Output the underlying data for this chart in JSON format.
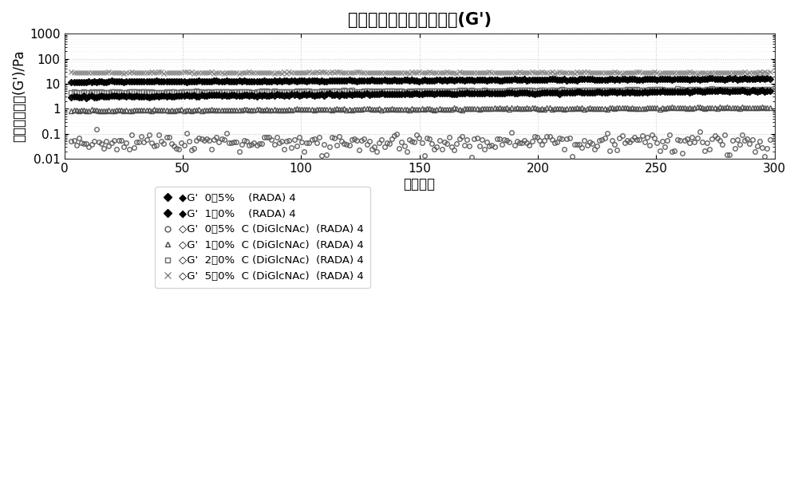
{
  "title": "水性溶液的贮存弹性模量(G')",
  "xlabel": "时间，秒",
  "ylabel": "贮存弹性模量(G')/Pa",
  "xlim": [
    0,
    300
  ],
  "ylim_log": [
    0.01,
    1000
  ],
  "xticks": [
    0,
    50,
    100,
    150,
    200,
    250,
    300
  ],
  "yticks": [
    0.01,
    0.1,
    1,
    10,
    100,
    1000
  ],
  "ytick_labels": [
    "0.01",
    "0.1",
    "1",
    "10",
    "100",
    "1000"
  ],
  "background_color": "#ffffff",
  "plot_bg_color": "#ffffff",
  "n_points": 280,
  "series": [
    {
      "label": "◆G'  0．5%    (RADA) 4",
      "y_center": 3.0,
      "noise": 0.04,
      "marker": "D",
      "color": "#000000",
      "markersize": 4,
      "fillstyle": "full",
      "trend": 0.002
    },
    {
      "label": "◆G'  1．0%    (RADA) 4",
      "y_center": 12.0,
      "noise": 0.03,
      "marker": "D",
      "color": "#000000",
      "markersize": 4,
      "fillstyle": "full",
      "trend": 0.001
    },
    {
      "label": "◇G'  0．5%  C (DiGlcNAc)  (RADA) 4",
      "y_center": 0.05,
      "noise": 0.35,
      "marker": "o",
      "color": "#555555",
      "markersize": 4,
      "fillstyle": "none",
      "trend": -0.001
    },
    {
      "label": "◇G'  1．0%  C (DiGlcNAc)  (RADA) 4",
      "y_center": 0.85,
      "noise": 0.04,
      "marker": "^",
      "color": "#444444",
      "markersize": 4,
      "fillstyle": "none",
      "trend": 0.001
    },
    {
      "label": "◇G'  2．0%  C (DiGlcNAc)  (RADA) 4",
      "y_center": 4.5,
      "noise": 0.03,
      "marker": "s",
      "color": "#666666",
      "markersize": 4,
      "fillstyle": "none",
      "trend": 0.001
    },
    {
      "label": "◇G'  5．0%  C (DiGlcNAc)  (RADA) 4",
      "y_center": 28.0,
      "noise": 0.03,
      "marker": "x",
      "color": "#888888",
      "markersize": 5,
      "fillstyle": "none",
      "trend": 0.0
    }
  ]
}
